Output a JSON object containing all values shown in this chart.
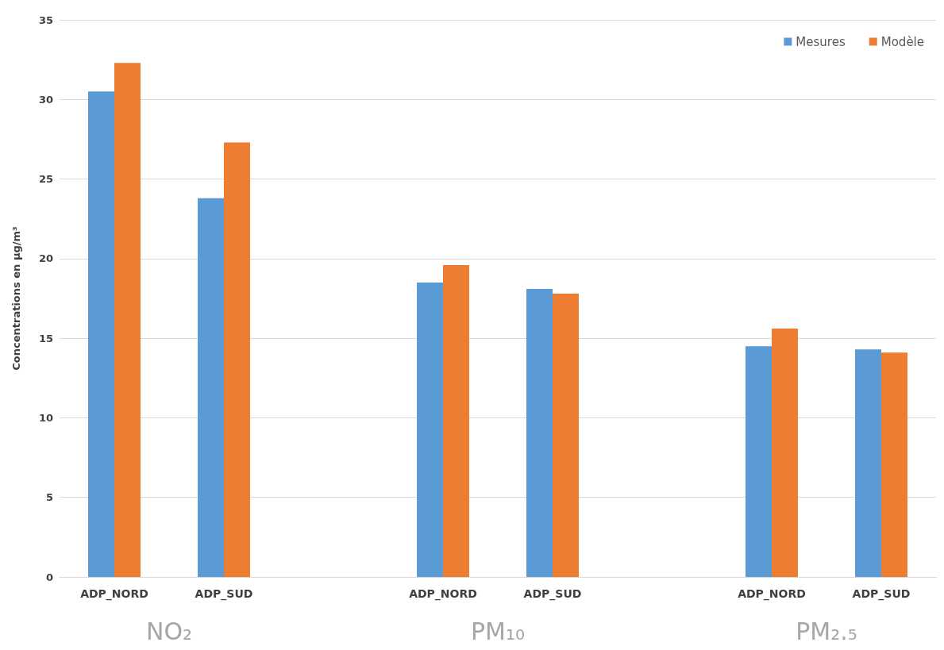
{
  "chart_data": {
    "type": "bar",
    "ylabel": "Concentrations en µg/m³",
    "categories": [
      "ADP_NORD",
      "ADP_SUD",
      null,
      "ADP_NORD",
      "ADP_SUD",
      null,
      "ADP_NORD",
      "ADP_SUD"
    ],
    "series": [
      {
        "name": "Mesures",
        "color": "#5b9bd5",
        "values": [
          30.5,
          23.8,
          null,
          18.5,
          18.1,
          null,
          14.5,
          14.3
        ]
      },
      {
        "name": "Modèle",
        "color": "#ed7d31",
        "values": [
          32.3,
          27.3,
          null,
          19.6,
          17.8,
          null,
          15.6,
          14.1
        ]
      }
    ],
    "ylim": [
      0,
      35
    ],
    "yticks": [
      0,
      5,
      10,
      15,
      20,
      25,
      30,
      35
    ],
    "grid": "y",
    "legend": "top right",
    "annotations": [
      "NO₂",
      "PM₁₀",
      "PM₂.₅"
    ]
  }
}
